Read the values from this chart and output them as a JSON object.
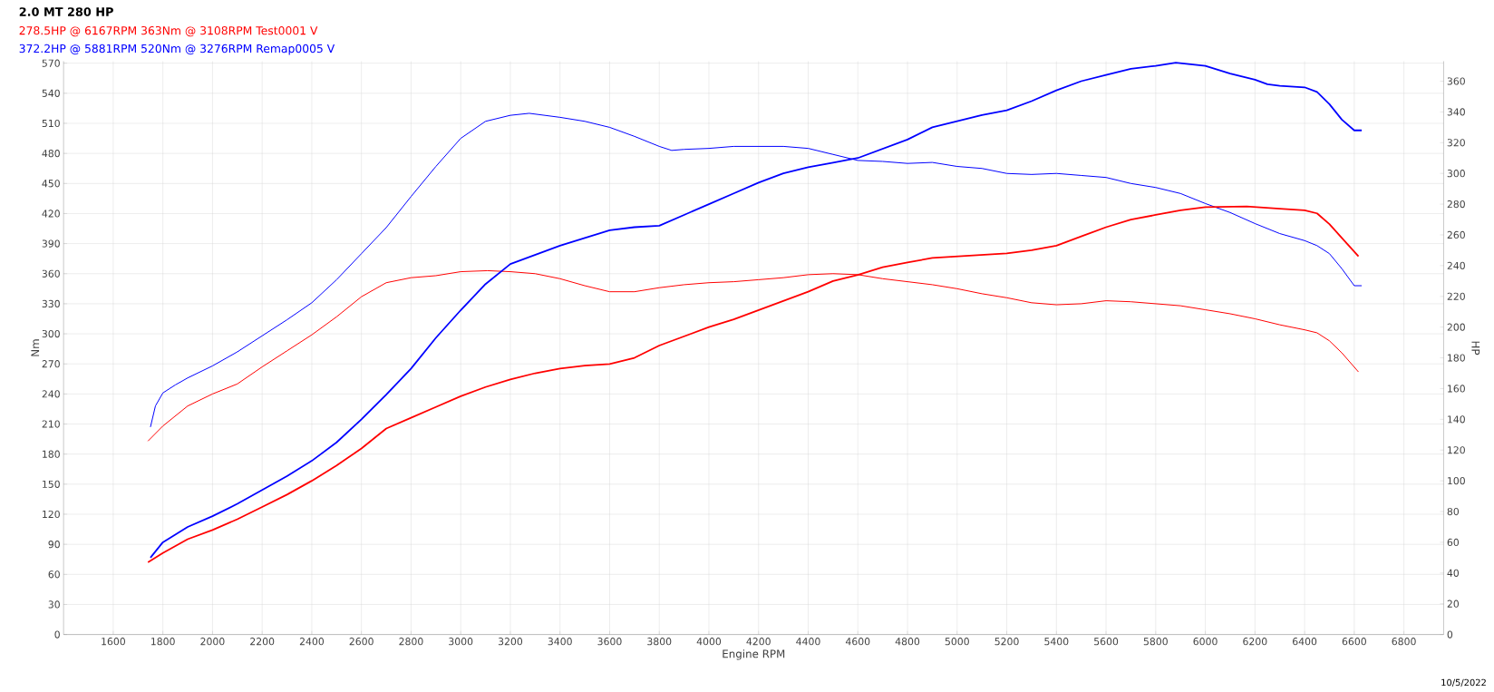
{
  "chart_data": {
    "type": "line",
    "title": "2.0 MT 280 HP",
    "xlabel": "Engine RPM",
    "ylabel": "Nm",
    "y2label": "HP",
    "xlim": [
      1400,
      6960
    ],
    "xticks": [
      1600,
      1800,
      2000,
      2200,
      2400,
      2600,
      2800,
      3000,
      3200,
      3400,
      3600,
      3800,
      4000,
      4200,
      4400,
      4600,
      4800,
      5000,
      5200,
      5400,
      5600,
      5800,
      6000,
      6200,
      6400,
      6600,
      6800
    ],
    "ylim": [
      0,
      572
    ],
    "yticks": [
      0,
      30,
      60,
      90,
      120,
      150,
      180,
      210,
      240,
      270,
      300,
      330,
      360,
      390,
      420,
      450,
      480,
      510,
      540,
      570
    ],
    "y2lim": [
      0,
      373
    ],
    "y2ticks": [
      0,
      20,
      40,
      60,
      80,
      100,
      120,
      140,
      160,
      180,
      200,
      220,
      240,
      260,
      280,
      300,
      320,
      340,
      360
    ],
    "grid": true,
    "annotations": [
      "10/5/2022"
    ],
    "series": [
      {
        "name": "278.5HP @  6167RPM  363Nm @ 3108RPM  Test0001 V",
        "color": "#ff0000",
        "x": [
          1740,
          1800,
          1900,
          2000,
          2100,
          2200,
          2300,
          2400,
          2500,
          2600,
          2700,
          2800,
          2900,
          3000,
          3108,
          3200,
          3300,
          3400,
          3500,
          3600,
          3700,
          3800,
          3900,
          4000,
          4100,
          4200,
          4300,
          4400,
          4500,
          4600,
          4700,
          4800,
          4900,
          5000,
          5100,
          5200,
          5300,
          5400,
          5500,
          5600,
          5700,
          5800,
          5900,
          6000,
          6100,
          6200,
          6300,
          6400,
          6450,
          6500,
          6550,
          6617
        ],
        "values": [
          193,
          208,
          228,
          240,
          250,
          267,
          283,
          299,
          317,
          337,
          351,
          356,
          358,
          362,
          363,
          362,
          360,
          355,
          348,
          342,
          342,
          346,
          349,
          351,
          352,
          354,
          356,
          359,
          360,
          359,
          355,
          352,
          349,
          345,
          340,
          336,
          331,
          329,
          330,
          333,
          332,
          330,
          328,
          324,
          320,
          315,
          309,
          304,
          301,
          293,
          281,
          262
        ]
      },
      {
        "color": "#ff0000",
        "axis": "y2",
        "x": [
          1740,
          1800,
          1900,
          2000,
          2100,
          2200,
          2300,
          2400,
          2500,
          2600,
          2700,
          2800,
          2900,
          3000,
          3100,
          3200,
          3300,
          3400,
          3500,
          3600,
          3700,
          3800,
          3900,
          4000,
          4100,
          4200,
          4300,
          4400,
          4500,
          4600,
          4700,
          4800,
          4900,
          5000,
          5100,
          5200,
          5300,
          5400,
          5500,
          5600,
          5700,
          5800,
          5900,
          6000,
          6167,
          6300,
          6400,
          6450,
          6500,
          6550,
          6617
        ],
        "values": [
          47,
          53,
          62,
          68,
          75,
          83,
          91,
          100,
          110,
          121,
          134,
          141,
          148,
          155,
          161,
          166,
          170,
          173,
          175,
          176,
          180,
          188,
          194,
          200,
          205,
          211,
          217,
          223,
          230,
          234,
          239,
          242,
          245,
          246,
          247,
          248,
          250,
          253,
          259,
          265,
          270,
          273,
          276,
          278,
          278.5,
          277,
          276,
          274,
          267,
          258,
          246
        ]
      },
      {
        "name": "372.2HP @  5881RPM  520Nm @ 3276RPM  Remap0005 V",
        "color": "#0000ff",
        "x": [
          1750,
          1770,
          1800,
          1850,
          1900,
          2000,
          2100,
          2200,
          2300,
          2400,
          2500,
          2600,
          2700,
          2800,
          2900,
          3000,
          3100,
          3200,
          3276,
          3400,
          3500,
          3600,
          3700,
          3800,
          3850,
          3900,
          4000,
          4100,
          4200,
          4300,
          4400,
          4500,
          4600,
          4700,
          4800,
          4900,
          5000,
          5100,
          5200,
          5300,
          5400,
          5500,
          5600,
          5700,
          5800,
          5900,
          6000,
          6100,
          6200,
          6300,
          6400,
          6450,
          6500,
          6550,
          6600,
          6630
        ],
        "values": [
          207,
          228,
          241,
          249,
          256,
          268,
          282,
          298,
          314,
          331,
          354,
          380,
          406,
          437,
          467,
          495,
          512,
          518,
          520,
          516,
          512,
          506,
          497,
          487,
          483,
          484,
          485,
          487,
          487,
          487,
          485,
          479,
          473,
          472,
          470,
          471,
          467,
          465,
          460,
          459,
          460,
          458,
          456,
          450,
          446,
          440,
          430,
          421,
          410,
          400,
          393,
          388,
          380,
          365,
          348,
          348
        ]
      },
      {
        "color": "#0000ff",
        "axis": "y2",
        "x": [
          1750,
          1800,
          1850,
          1900,
          2000,
          2100,
          2200,
          2300,
          2400,
          2500,
          2600,
          2700,
          2800,
          2900,
          3000,
          3100,
          3200,
          3300,
          3400,
          3500,
          3600,
          3700,
          3800,
          3900,
          4000,
          4100,
          4200,
          4300,
          4400,
          4500,
          4600,
          4700,
          4800,
          4900,
          5000,
          5100,
          5200,
          5300,
          5400,
          5500,
          5600,
          5700,
          5800,
          5881,
          6000,
          6100,
          6200,
          6250,
          6300,
          6400,
          6450,
          6500,
          6550,
          6600,
          6630
        ],
        "values": [
          50,
          60,
          65,
          70,
          77,
          85,
          94,
          103,
          113,
          125,
          140,
          156,
          173,
          193,
          211,
          228,
          241,
          247,
          253,
          258,
          263,
          265,
          266,
          273,
          280,
          287,
          294,
          300,
          304,
          307,
          310,
          316,
          322,
          330,
          334,
          338,
          341,
          347,
          354,
          360,
          364,
          368,
          370,
          372,
          370,
          365,
          361,
          358,
          357,
          356,
          353,
          345,
          335,
          328,
          328
        ]
      }
    ]
  }
}
